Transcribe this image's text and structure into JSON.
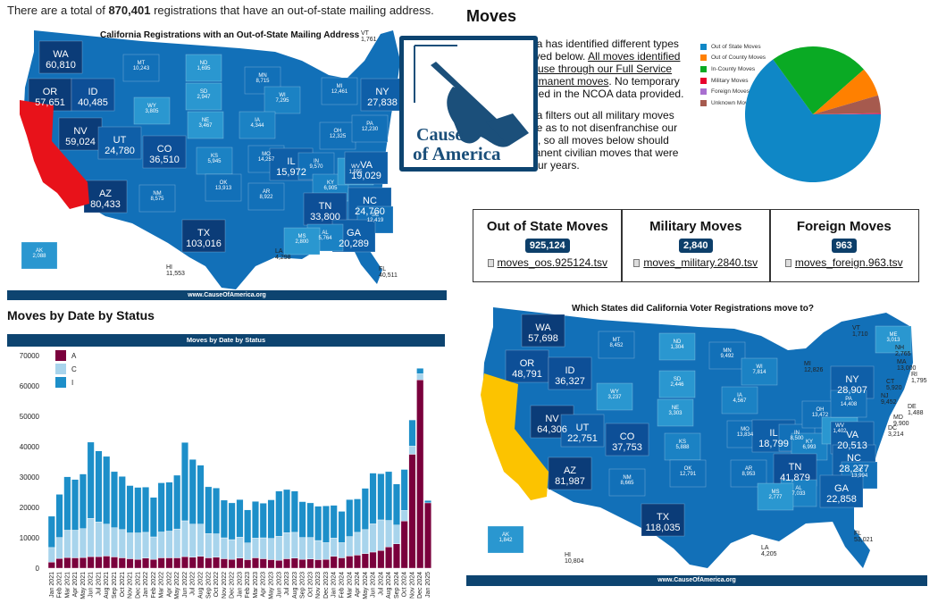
{
  "intro": {
    "prefix": "There are a total of ",
    "count": "870,401",
    "suffix": " registrations that have an out-of-state mailing address."
  },
  "page_title": "Moves",
  "logo": {
    "line1": "Cause",
    "line2": "of America"
  },
  "description": {
    "p1_a": "ica has identified different types",
    "p1_b": "ayed below. ",
    "p1_link1": "All moves identified",
    "p1_link2": "o use through our Full Service",
    "p1_link3": "ermanent moves",
    "p1_c": ". No temporary",
    "p1_d": "rned in the NCOA data provided.",
    "p2_a": "ica filters out all military moves",
    "p2_b": " file as to not disenfranchise our",
    "p2_c": "rs, so all moves below should",
    "p2_d": "nanent civilian moves that were",
    "p2_e": "four years."
  },
  "pie": {
    "legend": [
      {
        "label": "Out of State Moves",
        "color": "#0f87c6"
      },
      {
        "label": "Out of County Moves",
        "color": "#ff8000"
      },
      {
        "label": "In-County Moves",
        "color": "#0aaa24"
      },
      {
        "label": "Military Moves",
        "color": "#e8002d"
      },
      {
        "label": "Foreign Moves",
        "color": "#a86fd0"
      },
      {
        "label": "Unknown Moves",
        "color": "#a65a4e"
      }
    ],
    "slices_percent": [
      65,
      7,
      23.5,
      0.2,
      0.1,
      4.2
    ]
  },
  "cards": [
    {
      "title": "Out of State Moves",
      "count": "925,124",
      "file": "moves_oos.925124.tsv"
    },
    {
      "title": "Military Moves",
      "count": "2,840",
      "file": "moves_military.2840.tsv"
    },
    {
      "title": "Foreign Moves",
      "count": "963",
      "file": "moves_foreign.963.tsv"
    }
  ],
  "map1": {
    "title": "California Registrations with an Out-of-State Mailing Address",
    "footer": "www.CauseOfAmerica.org",
    "states": [
      {
        "abbr": "WA",
        "value": "60,810"
      },
      {
        "abbr": "OR",
        "value": "57,651"
      },
      {
        "abbr": "ID",
        "value": "40,485"
      },
      {
        "abbr": "MT",
        "value": "10,243"
      },
      {
        "abbr": "ND",
        "value": "1,695"
      },
      {
        "abbr": "SD",
        "value": "2,947"
      },
      {
        "abbr": "WY",
        "value": "3,805"
      },
      {
        "abbr": "NE",
        "value": "3,467"
      },
      {
        "abbr": "NV",
        "value": "59,024"
      },
      {
        "abbr": "UT",
        "value": "24,780"
      },
      {
        "abbr": "CO",
        "value": "36,510"
      },
      {
        "abbr": "KS",
        "value": "5,945"
      },
      {
        "abbr": "AZ",
        "value": "80,433"
      },
      {
        "abbr": "NM",
        "value": "8,575"
      },
      {
        "abbr": "OK",
        "value": "13,913"
      },
      {
        "abbr": "TX",
        "value": "103,016"
      },
      {
        "abbr": "MN",
        "value": "8,715"
      },
      {
        "abbr": "WI",
        "value": "7,295"
      },
      {
        "abbr": "IA",
        "value": "4,344"
      },
      {
        "abbr": "MO",
        "value": "14,257"
      },
      {
        "abbr": "AR",
        "value": "8,922"
      },
      {
        "abbr": "IL",
        "value": "15,972"
      },
      {
        "abbr": "IN",
        "value": "9,570"
      },
      {
        "abbr": "MI",
        "value": "12,461"
      },
      {
        "abbr": "OH",
        "value": "12,325"
      },
      {
        "abbr": "KY",
        "value": "6,905"
      },
      {
        "abbr": "WV",
        "value": "1,555"
      },
      {
        "abbr": "VA",
        "value": "19,029"
      },
      {
        "abbr": "TN",
        "value": "33,800"
      },
      {
        "abbr": "NC",
        "value": "24,760"
      },
      {
        "abbr": "SC",
        "value": "12,419"
      },
      {
        "abbr": "GA",
        "value": "20,289"
      },
      {
        "abbr": "AL",
        "value": "5,764"
      },
      {
        "abbr": "MS",
        "value": "2,800"
      },
      {
        "abbr": "LA",
        "value": "4,298"
      },
      {
        "abbr": "FL",
        "value": "40,511"
      },
      {
        "abbr": "NY",
        "value": "27,838"
      },
      {
        "abbr": "PA",
        "value": "12,230"
      },
      {
        "abbr": "VT",
        "value": "1,761"
      },
      {
        "abbr": "AK",
        "value": "2,088"
      },
      {
        "abbr": "HI",
        "value": "11,553"
      }
    ]
  },
  "map2": {
    "title": "Which States did California Voter Registrations move to?",
    "footer": "www.CauseOfAmerica.org",
    "states": [
      {
        "abbr": "WA",
        "value": "57,698"
      },
      {
        "abbr": "OR",
        "value": "48,791"
      },
      {
        "abbr": "ID",
        "value": "36,327"
      },
      {
        "abbr": "MT",
        "value": "8,452"
      },
      {
        "abbr": "ND",
        "value": "1,304"
      },
      {
        "abbr": "SD",
        "value": "2,446"
      },
      {
        "abbr": "WY",
        "value": "3,237"
      },
      {
        "abbr": "NE",
        "value": "3,303"
      },
      {
        "abbr": "NV",
        "value": "64,306"
      },
      {
        "abbr": "UT",
        "value": "22,751"
      },
      {
        "abbr": "CO",
        "value": "37,753"
      },
      {
        "abbr": "KS",
        "value": "5,888"
      },
      {
        "abbr": "AZ",
        "value": "81,987"
      },
      {
        "abbr": "NM",
        "value": "8,665"
      },
      {
        "abbr": "OK",
        "value": "12,791"
      },
      {
        "abbr": "TX",
        "value": "118,035"
      },
      {
        "abbr": "MN",
        "value": "9,492"
      },
      {
        "abbr": "WI",
        "value": "7,814"
      },
      {
        "abbr": "IA",
        "value": "4,567"
      },
      {
        "abbr": "MO",
        "value": "13,834"
      },
      {
        "abbr": "AR",
        "value": "8,953"
      },
      {
        "abbr": "IL",
        "value": "18,799"
      },
      {
        "abbr": "IN",
        "value": "8,500"
      },
      {
        "abbr": "MI",
        "value": "12,826"
      },
      {
        "abbr": "OH",
        "value": "13,472"
      },
      {
        "abbr": "KY",
        "value": "6,993"
      },
      {
        "abbr": "WV",
        "value": "1,402"
      },
      {
        "abbr": "VA",
        "value": "20,513"
      },
      {
        "abbr": "TN",
        "value": "41,879"
      },
      {
        "abbr": "NC",
        "value": "28,277"
      },
      {
        "abbr": "SC",
        "value": "13,994"
      },
      {
        "abbr": "GA",
        "value": "22,858"
      },
      {
        "abbr": "AL",
        "value": "7,033"
      },
      {
        "abbr": "MS",
        "value": "2,777"
      },
      {
        "abbr": "LA",
        "value": "4,205"
      },
      {
        "abbr": "FL",
        "value": "53,021"
      },
      {
        "abbr": "NY",
        "value": "28,907"
      },
      {
        "abbr": "PA",
        "value": "14,408"
      },
      {
        "abbr": "VT",
        "value": "1,710"
      },
      {
        "abbr": "ME",
        "value": "3,013"
      },
      {
        "abbr": "NH",
        "value": "2,765"
      },
      {
        "abbr": "MA",
        "value": "13,000"
      },
      {
        "abbr": "RI",
        "value": "1,795"
      },
      {
        "abbr": "CT",
        "value": "5,920"
      },
      {
        "abbr": "NJ",
        "value": "9,452"
      },
      {
        "abbr": "DE",
        "value": "1,488"
      },
      {
        "abbr": "MD",
        "value": "9,900"
      },
      {
        "abbr": "DC",
        "value": "3,214"
      },
      {
        "abbr": "AK",
        "value": "1,842"
      },
      {
        "abbr": "HI",
        "value": "10,804"
      }
    ]
  },
  "section_title": "Moves by Date by Status",
  "chart_data": {
    "type": "bar",
    "stacked": true,
    "title": "Moves by Date by Status",
    "xlabel": "",
    "ylabel": "",
    "ylim": [
      0,
      70000
    ],
    "yticks": [
      0,
      10000,
      20000,
      30000,
      40000,
      50000,
      60000,
      70000
    ],
    "legend_position": "top-left",
    "categories": [
      "Jan 2021",
      "Feb 2021",
      "Mar 2021",
      "Apr 2021",
      "May 2021",
      "Jun 2021",
      "Jul 2021",
      "Aug 2021",
      "Sep 2021",
      "Oct 2021",
      "Nov 2021",
      "Dec 2021",
      "Jan 2022",
      "Feb 2022",
      "Mar 2022",
      "Apr 2022",
      "May 2022",
      "Jun 2022",
      "Jul 2022",
      "Aug 2022",
      "Sep 2022",
      "Oct 2022",
      "Nov 2022",
      "Dec 2022",
      "Jan 2023",
      "Feb 2023",
      "Mar 2023",
      "Apr 2023",
      "May 2023",
      "Jun 2023",
      "Jul 2023",
      "Aug 2023",
      "Sep 2023",
      "Oct 2023",
      "Nov 2023",
      "Dec 2023",
      "Jan 2024",
      "Feb 2024",
      "Mar 2024",
      "Apr 2024",
      "May 2024",
      "Jun 2024",
      "Jul 2024",
      "Aug 2024",
      "Sep 2024",
      "Oct 2024",
      "Nov 2024",
      "Dec 2024",
      "Jan 2025"
    ],
    "series": [
      {
        "name": "A",
        "color": "#7a003c",
        "values": [
          2000,
          3200,
          3500,
          3400,
          3500,
          3800,
          3800,
          4000,
          3700,
          3400,
          3100,
          2900,
          3300,
          2900,
          3400,
          3400,
          3400,
          3800,
          3600,
          3900,
          3400,
          3600,
          3100,
          2900,
          3300,
          2800,
          3400,
          3100,
          2800,
          2600,
          3100,
          3300,
          2900,
          3000,
          2800,
          2900,
          3900,
          3400,
          4000,
          4300,
          4800,
          5300,
          5800,
          7000,
          8000,
          15500,
          37500,
          62000,
          21500
        ]
      },
      {
        "name": "C",
        "color": "#a8d4ec",
        "values": [
          4800,
          6900,
          9000,
          9100,
          9500,
          12600,
          11400,
          10500,
          9600,
          9300,
          8500,
          8700,
          8500,
          7400,
          8500,
          8800,
          9500,
          11800,
          10900,
          10600,
          8000,
          7700,
          6900,
          6500,
          6900,
          5500,
          6500,
          6900,
          7000,
          7900,
          8600,
          8500,
          7200,
          7100,
          6300,
          5500,
          6000,
          5000,
          6400,
          7500,
          7900,
          9300,
          10100,
          8700,
          6200,
          3500,
          2700,
          2000,
          0
        ]
      },
      {
        "name": "I",
        "color": "#1d8fc9",
        "values": [
          10300,
          14200,
          17600,
          16700,
          18000,
          25100,
          23400,
          22300,
          18500,
          17500,
          15600,
          15000,
          14900,
          13000,
          16200,
          16100,
          17700,
          25800,
          21300,
          19400,
          15400,
          15100,
          12400,
          12100,
          12400,
          10900,
          12100,
          11400,
          12700,
          14900,
          14200,
          13600,
          11800,
          11400,
          11300,
          12100,
          10800,
          10300,
          12200,
          11000,
          13600,
          16700,
          15200,
          16100,
          13500,
          13500,
          8600,
          1800,
          800
        ]
      }
    ]
  }
}
